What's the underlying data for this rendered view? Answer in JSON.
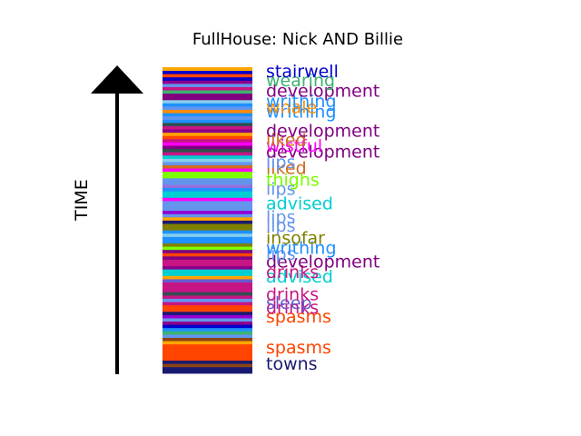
{
  "chart_data": {
    "type": "bar",
    "title": "FullHouse: Nick AND Billie",
    "ylabel": "TIME",
    "xlabel": "",
    "grid": false,
    "legend": "none",
    "stripes": [
      {
        "c": "#191970"
      },
      {
        "c": "#191970"
      },
      {
        "c": "#8b4513"
      },
      {
        "c": "#191970"
      },
      {
        "c": "#ff4500"
      },
      {
        "c": "#ff4500"
      },
      {
        "c": "#ff4500"
      },
      {
        "c": "#ff4500"
      },
      {
        "c": "#ff4500"
      },
      {
        "c": "#ffa500"
      },
      {
        "c": "#8b4513"
      },
      {
        "c": "#6495ed"
      },
      {
        "c": "#3cb371"
      },
      {
        "c": "#1e90ff"
      },
      {
        "c": "#0000cd"
      },
      {
        "c": "#8b008b"
      },
      {
        "c": "#6495ed"
      },
      {
        "c": "#9400d3"
      },
      {
        "c": "#191970"
      },
      {
        "c": "#ff4500"
      },
      {
        "c": "#ff4500"
      },
      {
        "c": "#c71585"
      },
      {
        "c": "#6495ed"
      },
      {
        "c": "#c71585"
      },
      {
        "c": "#2f4f4f"
      },
      {
        "c": "#c71585"
      },
      {
        "c": "#c71585"
      },
      {
        "c": "#c71585"
      },
      {
        "c": "#6a5acd"
      },
      {
        "c": "#ffa500"
      },
      {
        "c": "#00ced1"
      },
      {
        "c": "#00ced1"
      },
      {
        "c": "#8b008b"
      },
      {
        "c": "#c71585"
      },
      {
        "c": "#c71585"
      },
      {
        "c": "#800080"
      },
      {
        "c": "#ff4500"
      },
      {
        "c": "#800080"
      },
      {
        "c": "#7cfc00"
      },
      {
        "c": "#808000"
      },
      {
        "c": "#1e90ff"
      },
      {
        "c": "#1e90ff"
      },
      {
        "c": "#87ceeb"
      },
      {
        "c": "#1e90ff"
      },
      {
        "c": "#808000"
      },
      {
        "c": "#808000"
      },
      {
        "c": "#191970"
      },
      {
        "c": "#ffa500"
      },
      {
        "c": "#6495ed"
      },
      {
        "c": "#9400d3"
      },
      {
        "c": "#6495ed"
      },
      {
        "c": "#6495ed"
      },
      {
        "c": "#6495ed"
      },
      {
        "c": "#ff00ff"
      },
      {
        "c": "#00ced1"
      },
      {
        "c": "#00ced1"
      },
      {
        "c": "#1e90ff"
      },
      {
        "c": "#9370db"
      },
      {
        "c": "#6495ed"
      },
      {
        "c": "#6495ed"
      },
      {
        "c": "#7cfc00"
      },
      {
        "c": "#7cfc00"
      },
      {
        "c": "#ff00ff"
      },
      {
        "c": "#d2691e"
      },
      {
        "c": "#6495ed"
      },
      {
        "c": "#87ceeb"
      },
      {
        "c": "#00ced1"
      },
      {
        "c": "#c71585"
      },
      {
        "c": "#2f4f4f"
      },
      {
        "c": "#800080"
      },
      {
        "c": "#ff00ff"
      },
      {
        "c": "#c71585"
      },
      {
        "c": "#ff4500"
      },
      {
        "c": "#ffa500"
      },
      {
        "c": "#8b008b"
      },
      {
        "c": "#c71585"
      },
      {
        "c": "#2f4f4f"
      },
      {
        "c": "#1e90ff"
      },
      {
        "c": "#6495ed"
      },
      {
        "c": "#1e90ff"
      },
      {
        "c": "#ff8c00"
      },
      {
        "c": "#6495ed"
      },
      {
        "c": "#1e90ff"
      },
      {
        "c": "#87ceeb"
      },
      {
        "c": "#800080"
      },
      {
        "c": "#800080"
      },
      {
        "c": "#3cb371"
      },
      {
        "c": "#c71585"
      },
      {
        "c": "#6495ed"
      },
      {
        "c": "#8b008b"
      },
      {
        "c": "#0000cd"
      },
      {
        "c": "#ff4500"
      },
      {
        "c": "#0000cd"
      },
      {
        "c": "#ffa500"
      }
    ],
    "labels": [
      {
        "text": "towns",
        "color": "#191970",
        "pos": 0.01
      },
      {
        "text": "spasms",
        "color": "#ff4500",
        "pos": 0.065
      },
      {
        "text": "spasms",
        "color": "#ff4500",
        "pos": 0.17
      },
      {
        "text": "drinks",
        "color": "#c71585",
        "pos": 0.2
      },
      {
        "text": "sleep",
        "color": "#6a5acd",
        "pos": 0.215
      },
      {
        "text": "drinks",
        "color": "#c71585",
        "pos": 0.245
      },
      {
        "text": "advised",
        "color": "#00ced1",
        "pos": 0.305
      },
      {
        "text": "drinks",
        "color": "#c71585",
        "pos": 0.32
      },
      {
        "text": "development",
        "color": "#800080",
        "pos": 0.355
      },
      {
        "text": "lips",
        "color": "#6495ed",
        "pos": 0.38
      },
      {
        "text": "writhing",
        "color": "#1e90ff",
        "pos": 0.4
      },
      {
        "text": "insofar",
        "color": "#808000",
        "pos": 0.435
      },
      {
        "text": "lips",
        "color": "#6495ed",
        "pos": 0.475
      },
      {
        "text": "lips",
        "color": "#6495ed",
        "pos": 0.505
      },
      {
        "text": "advised",
        "color": "#00ced1",
        "pos": 0.55
      },
      {
        "text": "lips",
        "color": "#6495ed",
        "pos": 0.6
      },
      {
        "text": "thighs",
        "color": "#7cfc00",
        "pos": 0.63
      },
      {
        "text": "liked",
        "color": "#d2691e",
        "pos": 0.67
      },
      {
        "text": "lips",
        "color": "#6495ed",
        "pos": 0.69
      },
      {
        "text": "development",
        "color": "#800080",
        "pos": 0.725
      },
      {
        "text": "wistful",
        "color": "#ff00ff",
        "pos": 0.745
      },
      {
        "text": "liked",
        "color": "#d2691e",
        "pos": 0.765
      },
      {
        "text": "development",
        "color": "#800080",
        "pos": 0.795
      },
      {
        "text": "writhing",
        "color": "#1e90ff",
        "pos": 0.86
      },
      {
        "text": "whale",
        "color": "#ff8c00",
        "pos": 0.875
      },
      {
        "text": "writhing",
        "color": "#1e90ff",
        "pos": 0.895
      },
      {
        "text": "development",
        "color": "#800080",
        "pos": 0.93
      },
      {
        "text": "wearing",
        "color": "#3cb371",
        "pos": 0.965
      },
      {
        "text": "stairwell",
        "color": "#0000cd",
        "pos": 0.995
      }
    ]
  }
}
